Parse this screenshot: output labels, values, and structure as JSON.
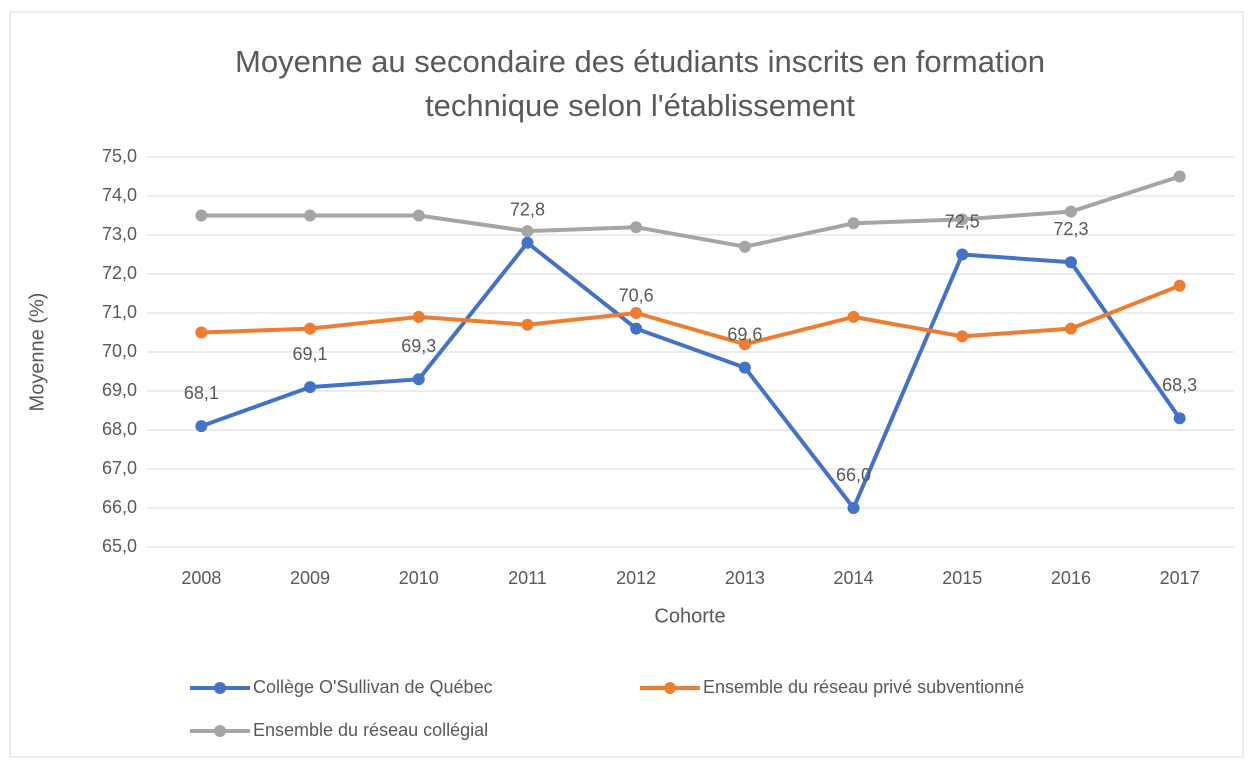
{
  "chart_data": {
    "type": "line",
    "title": "Moyenne au secondaire des étudiants inscrits en formation technique selon l'établissement",
    "x_label": "Cohorte",
    "y_label": "Moyenne (%)",
    "categories": [
      "2008",
      "2009",
      "2010",
      "2011",
      "2012",
      "2013",
      "2014",
      "2015",
      "2016",
      "2017"
    ],
    "ylim": [
      65,
      75
    ],
    "yticks": [
      {
        "value": 65,
        "label": "65,0"
      },
      {
        "value": 66,
        "label": "66,0"
      },
      {
        "value": 67,
        "label": "67,0"
      },
      {
        "value": 68,
        "label": "68,0"
      },
      {
        "value": 69,
        "label": "69,0"
      },
      {
        "value": 70,
        "label": "70,0"
      },
      {
        "value": 71,
        "label": "71,0"
      },
      {
        "value": 72,
        "label": "72,0"
      },
      {
        "value": 73,
        "label": "73,0"
      },
      {
        "value": 74,
        "label": "74,0"
      },
      {
        "value": 75,
        "label": "75,0"
      }
    ],
    "grid": true,
    "legend": "bottom",
    "series": [
      {
        "name": "Collège O'Sullivan de Québec",
        "color": "#4472c4",
        "values": [
          68.1,
          69.1,
          69.3,
          72.8,
          70.6,
          69.6,
          66.0,
          72.5,
          72.3,
          68.3
        ],
        "value_labels": [
          "68,1",
          "69,1",
          "69,3",
          "72,8",
          "70,6",
          "69,6",
          "66,0",
          "72,5",
          "72,3",
          "68,3"
        ]
      },
      {
        "name": "Ensemble du réseau privé subventionné",
        "color": "#ed7d31",
        "values": [
          70.5,
          70.6,
          70.9,
          70.7,
          71.0,
          70.2,
          70.9,
          70.4,
          70.6,
          71.7
        ]
      },
      {
        "name": "Ensemble du réseau collégial",
        "color": "#a5a5a5",
        "values": [
          73.5,
          73.5,
          73.5,
          73.1,
          73.2,
          72.7,
          73.3,
          73.4,
          73.6,
          74.5
        ]
      }
    ]
  }
}
